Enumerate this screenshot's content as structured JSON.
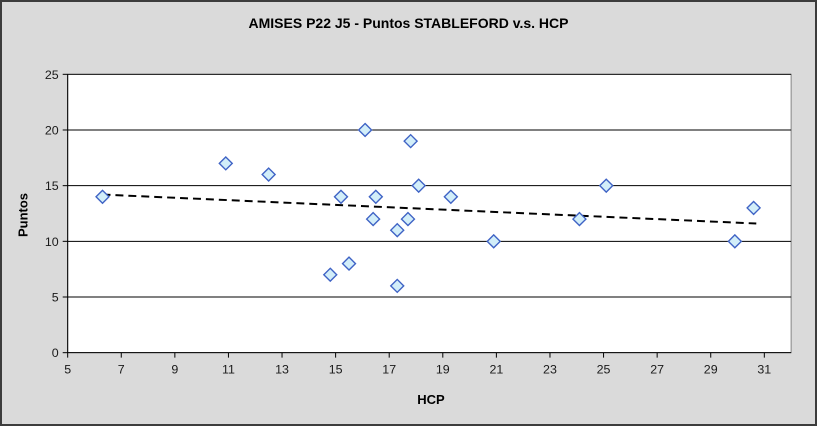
{
  "window": {
    "background_color": "#DADADA",
    "border_color": "#3C3C3C",
    "plot_background": "#FFFFFF",
    "plot_border_color": "#848484",
    "gridline_color": "#000000",
    "axis_color": "#000000",
    "tick_label_color": "#1A1A1A"
  },
  "chart_data": {
    "type": "scatter",
    "title": "AMISES P22 J5 - Puntos STABLEFORD v.s. HCP",
    "xlabel": "HCP",
    "ylabel": "Puntos",
    "xlim": [
      5,
      32
    ],
    "ylim": [
      0,
      25
    ],
    "x_ticks": [
      5,
      7,
      9,
      11,
      13,
      15,
      17,
      19,
      21,
      23,
      25,
      27,
      29,
      31
    ],
    "y_ticks": [
      0,
      5,
      10,
      15,
      20,
      25
    ],
    "grid": "horizontal",
    "legend": "none",
    "series": [
      {
        "name": "Puntos STABLEFORD",
        "marker": "diamond",
        "marker_fill": "#D2EEF9",
        "marker_stroke": "#3F63C5",
        "points": [
          {
            "x": 6.3,
            "y": 14
          },
          {
            "x": 10.9,
            "y": 17
          },
          {
            "x": 12.5,
            "y": 16
          },
          {
            "x": 14.8,
            "y": 7
          },
          {
            "x": 15.2,
            "y": 14
          },
          {
            "x": 15.5,
            "y": 8
          },
          {
            "x": 16.1,
            "y": 20
          },
          {
            "x": 16.4,
            "y": 12
          },
          {
            "x": 16.5,
            "y": 14
          },
          {
            "x": 17.3,
            "y": 6
          },
          {
            "x": 17.3,
            "y": 11
          },
          {
            "x": 17.7,
            "y": 12
          },
          {
            "x": 17.8,
            "y": 19
          },
          {
            "x": 18.1,
            "y": 15
          },
          {
            "x": 19.3,
            "y": 14
          },
          {
            "x": 20.9,
            "y": 10
          },
          {
            "x": 24.1,
            "y": 12
          },
          {
            "x": 25.1,
            "y": 15
          },
          {
            "x": 29.9,
            "y": 10
          },
          {
            "x": 30.6,
            "y": 13
          }
        ]
      }
    ],
    "trendline": {
      "style": "dashed",
      "color": "#000000",
      "x1": 6.3,
      "y1": 14.2,
      "x2": 30.7,
      "y2": 11.6
    }
  }
}
